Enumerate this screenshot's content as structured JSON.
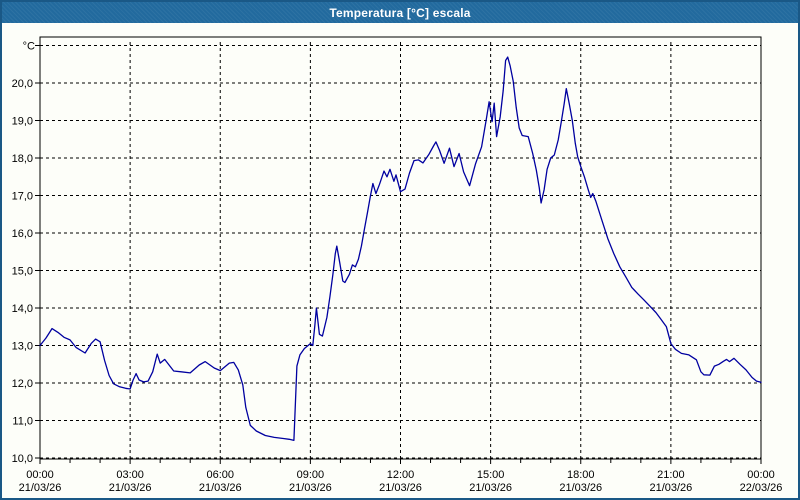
{
  "window": {
    "title": "Temperatura [°C] escala",
    "colors": {
      "titlebar": "#226A9E",
      "title_text": "#FFFFFF",
      "border": "#1A5886",
      "background": "#FDFEF9"
    }
  },
  "chart_data": {
    "type": "line",
    "title": "Temperatura [°C] escala",
    "xlabel": "",
    "ylabel": "°C",
    "grid": true,
    "legend": "none",
    "y_axis": {
      "min": 10,
      "max": 21,
      "tick_step": 1,
      "tick_labels": [
        "10,0",
        "11,0",
        "12,0",
        "13,0",
        "14,0",
        "15,0",
        "16,0",
        "17,0",
        "18,0",
        "19,0",
        "20,0"
      ],
      "unit_label": "°C",
      "decimal_separator": ","
    },
    "x_axis": {
      "unit": "hours",
      "min": 0,
      "max": 24,
      "tick_hours": [
        0,
        3,
        6,
        9,
        12,
        15,
        18,
        21,
        24
      ],
      "tick_times": [
        "00:00",
        "03:00",
        "06:00",
        "09:00",
        "12:00",
        "15:00",
        "18:00",
        "21:00",
        "00:00"
      ],
      "tick_dates": [
        "21/03/26",
        "21/03/26",
        "21/03/26",
        "21/03/26",
        "21/03/26",
        "21/03/26",
        "21/03/26",
        "21/03/26",
        "22/03/26"
      ],
      "minor_tick_every_hours": 1
    },
    "colors": {
      "line": "#0000A0",
      "grid": "#000000",
      "axis": "#000000"
    },
    "series": [
      {
        "name": "Temperatura",
        "color": "#0000A0",
        "points": [
          [
            0,
            13.0
          ],
          [
            0.2,
            13.2
          ],
          [
            0.4,
            13.45
          ],
          [
            0.6,
            13.35
          ],
          [
            0.8,
            13.22
          ],
          [
            1.0,
            13.15
          ],
          [
            1.2,
            12.95
          ],
          [
            1.5,
            12.8
          ],
          [
            1.7,
            13.05
          ],
          [
            1.85,
            13.17
          ],
          [
            2.0,
            13.1
          ],
          [
            2.15,
            12.6
          ],
          [
            2.3,
            12.2
          ],
          [
            2.45,
            11.98
          ],
          [
            2.65,
            11.9
          ],
          [
            2.85,
            11.86
          ],
          [
            3.0,
            11.84
          ],
          [
            3.1,
            12.08
          ],
          [
            3.2,
            12.25
          ],
          [
            3.3,
            12.08
          ],
          [
            3.45,
            12.03
          ],
          [
            3.6,
            12.05
          ],
          [
            3.75,
            12.3
          ],
          [
            3.9,
            12.77
          ],
          [
            4.0,
            12.53
          ],
          [
            4.15,
            12.63
          ],
          [
            4.45,
            12.32
          ],
          [
            4.7,
            12.3
          ],
          [
            5.0,
            12.27
          ],
          [
            5.3,
            12.48
          ],
          [
            5.5,
            12.57
          ],
          [
            5.8,
            12.4
          ],
          [
            6.0,
            12.33
          ],
          [
            6.3,
            12.53
          ],
          [
            6.45,
            12.55
          ],
          [
            6.6,
            12.35
          ],
          [
            6.75,
            11.95
          ],
          [
            6.85,
            11.35
          ],
          [
            7.0,
            10.87
          ],
          [
            7.2,
            10.72
          ],
          [
            7.5,
            10.6
          ],
          [
            7.8,
            10.55
          ],
          [
            8.1,
            10.52
          ],
          [
            8.3,
            10.5
          ],
          [
            8.45,
            10.47
          ],
          [
            8.55,
            12.45
          ],
          [
            8.65,
            12.75
          ],
          [
            8.8,
            12.92
          ],
          [
            9.0,
            13.05
          ],
          [
            9.08,
            13.0
          ],
          [
            9.15,
            13.55
          ],
          [
            9.2,
            14.0
          ],
          [
            9.3,
            13.3
          ],
          [
            9.4,
            13.25
          ],
          [
            9.55,
            13.75
          ],
          [
            9.65,
            14.3
          ],
          [
            9.75,
            14.9
          ],
          [
            9.83,
            15.45
          ],
          [
            9.88,
            15.65
          ],
          [
            9.98,
            15.2
          ],
          [
            10.08,
            14.72
          ],
          [
            10.15,
            14.68
          ],
          [
            10.3,
            14.9
          ],
          [
            10.4,
            15.15
          ],
          [
            10.5,
            15.1
          ],
          [
            10.6,
            15.3
          ],
          [
            10.7,
            15.65
          ],
          [
            10.8,
            16.1
          ],
          [
            10.9,
            16.55
          ],
          [
            11.0,
            17.0
          ],
          [
            11.08,
            17.32
          ],
          [
            11.18,
            17.05
          ],
          [
            11.3,
            17.3
          ],
          [
            11.45,
            17.65
          ],
          [
            11.55,
            17.5
          ],
          [
            11.65,
            17.7
          ],
          [
            11.78,
            17.38
          ],
          [
            11.85,
            17.55
          ],
          [
            12.0,
            17.1
          ],
          [
            12.15,
            17.17
          ],
          [
            12.3,
            17.6
          ],
          [
            12.45,
            17.93
          ],
          [
            12.6,
            17.95
          ],
          [
            12.75,
            17.87
          ],
          [
            12.95,
            18.1
          ],
          [
            13.1,
            18.32
          ],
          [
            13.18,
            18.43
          ],
          [
            13.3,
            18.2
          ],
          [
            13.45,
            17.86
          ],
          [
            13.63,
            18.26
          ],
          [
            13.78,
            17.77
          ],
          [
            13.95,
            18.12
          ],
          [
            14.1,
            17.63
          ],
          [
            14.3,
            17.26
          ],
          [
            14.5,
            17.85
          ],
          [
            14.7,
            18.3
          ],
          [
            14.85,
            19.0
          ],
          [
            14.95,
            19.5
          ],
          [
            15.05,
            18.97
          ],
          [
            15.12,
            19.46
          ],
          [
            15.2,
            18.57
          ],
          [
            15.32,
            19.1
          ],
          [
            15.42,
            19.8
          ],
          [
            15.5,
            20.6
          ],
          [
            15.57,
            20.69
          ],
          [
            15.65,
            20.45
          ],
          [
            15.75,
            20.05
          ],
          [
            15.85,
            19.35
          ],
          [
            15.95,
            18.8
          ],
          [
            16.05,
            18.6
          ],
          [
            16.25,
            18.57
          ],
          [
            16.4,
            18.12
          ],
          [
            16.52,
            17.68
          ],
          [
            16.62,
            17.2
          ],
          [
            16.68,
            16.8
          ],
          [
            16.78,
            17.15
          ],
          [
            16.88,
            17.7
          ],
          [
            17.0,
            18.0
          ],
          [
            17.12,
            18.08
          ],
          [
            17.25,
            18.48
          ],
          [
            17.35,
            18.95
          ],
          [
            17.45,
            19.45
          ],
          [
            17.52,
            19.85
          ],
          [
            17.62,
            19.44
          ],
          [
            17.72,
            19.0
          ],
          [
            17.82,
            18.39
          ],
          [
            17.9,
            18.03
          ],
          [
            18.0,
            17.77
          ],
          [
            18.12,
            17.5
          ],
          [
            18.25,
            17.15
          ],
          [
            18.33,
            16.95
          ],
          [
            18.4,
            17.05
          ],
          [
            18.5,
            16.85
          ],
          [
            18.7,
            16.35
          ],
          [
            18.9,
            15.85
          ],
          [
            19.1,
            15.45
          ],
          [
            19.3,
            15.1
          ],
          [
            19.5,
            14.83
          ],
          [
            19.7,
            14.55
          ],
          [
            19.9,
            14.38
          ],
          [
            20.1,
            14.22
          ],
          [
            20.3,
            14.05
          ],
          [
            20.5,
            13.88
          ],
          [
            20.65,
            13.72
          ],
          [
            20.85,
            13.5
          ],
          [
            21.0,
            13.05
          ],
          [
            21.15,
            12.9
          ],
          [
            21.35,
            12.79
          ],
          [
            21.6,
            12.75
          ],
          [
            21.85,
            12.62
          ],
          [
            22.0,
            12.3
          ],
          [
            22.1,
            12.22
          ],
          [
            22.3,
            12.21
          ],
          [
            22.45,
            12.45
          ],
          [
            22.6,
            12.5
          ],
          [
            22.75,
            12.58
          ],
          [
            22.85,
            12.63
          ],
          [
            22.95,
            12.57
          ],
          [
            23.1,
            12.66
          ],
          [
            23.3,
            12.5
          ],
          [
            23.5,
            12.35
          ],
          [
            23.7,
            12.15
          ],
          [
            23.85,
            12.05
          ],
          [
            24.0,
            12.02
          ]
        ]
      }
    ]
  }
}
